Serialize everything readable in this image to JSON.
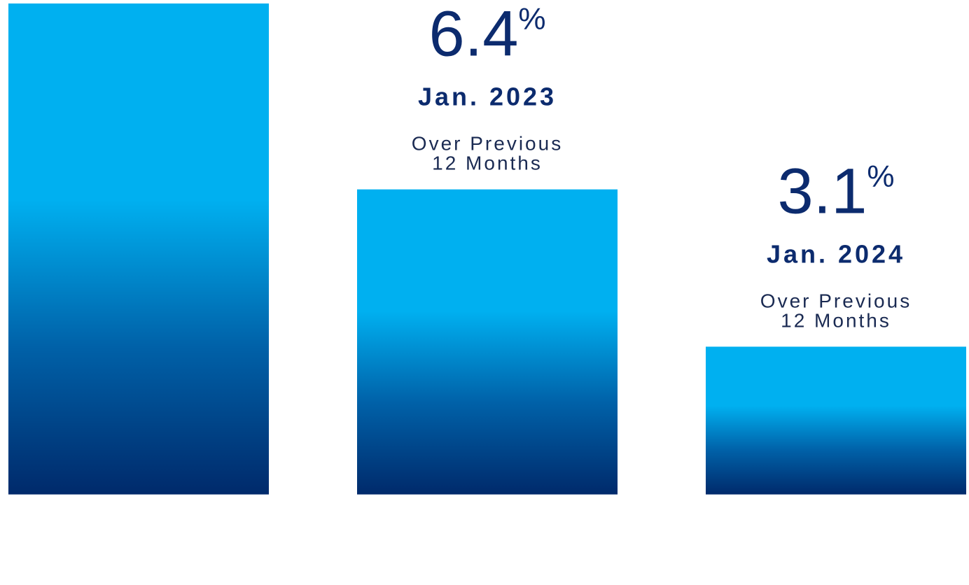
{
  "chart_data": {
    "type": "bar",
    "categories": [
      null,
      "Jan. 2023",
      "Jan. 2024"
    ],
    "values": [
      10.3,
      6.4,
      3.1
    ],
    "unit": "%",
    "sublabel": [
      "Over Previous",
      "12 Months"
    ],
    "color": "#00b0f0",
    "ylim": [
      -1.9,
      10.3
    ]
  }
}
